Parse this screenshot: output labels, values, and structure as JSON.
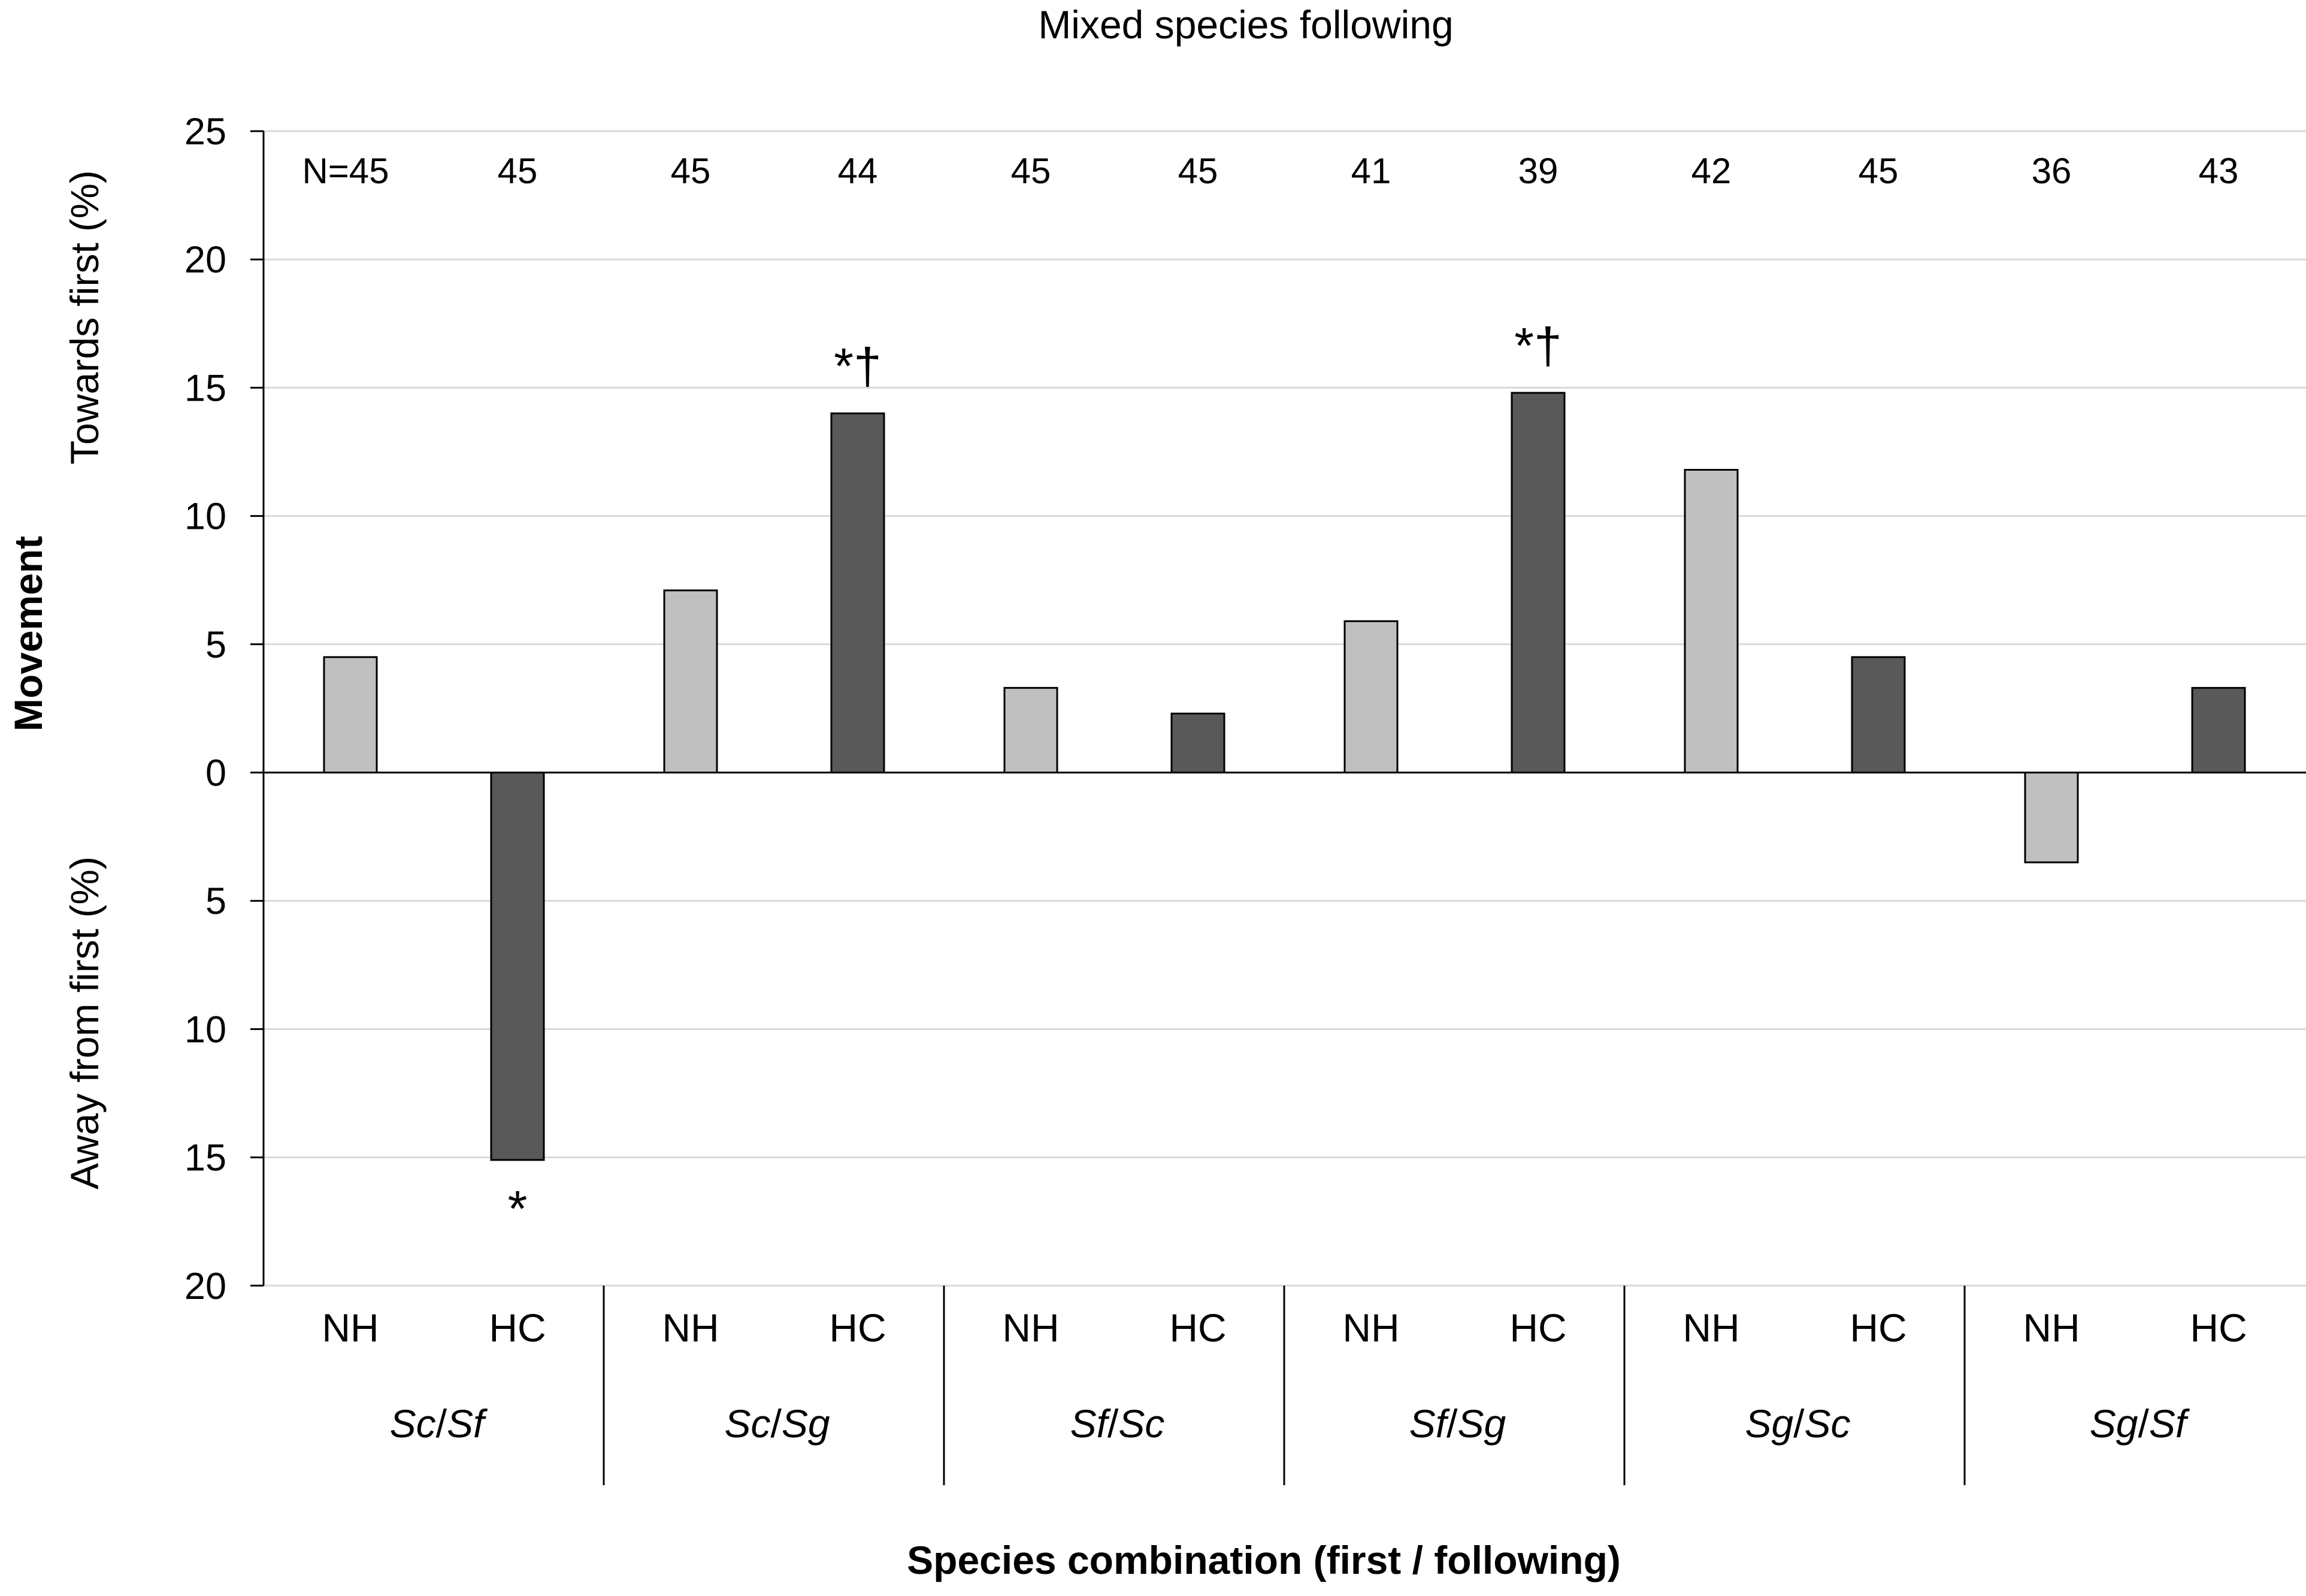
{
  "chart_data": {
    "type": "bar",
    "title": "Mixed species following",
    "xlabel": "Species combination  (first / following)",
    "ylabel": "Movement",
    "ylabel_towards": "Towards first (%)",
    "ylabel_away": "Away from first (%)",
    "ylim": [
      -20,
      25
    ],
    "yticks": [
      25,
      20,
      15,
      10,
      5,
      0,
      -5,
      -10,
      -15,
      -20
    ],
    "ytick_labels": [
      "25",
      "20",
      "15",
      "10",
      "5",
      "0",
      "5",
      "10",
      "15",
      "20"
    ],
    "grid": true,
    "colors": {
      "NH": "#c0c0c0",
      "HC": "#595959",
      "edge": "#000000",
      "grid": "#d9d9d9"
    },
    "groups": [
      {
        "label_first": "Sc",
        "label_sep": "/",
        "label_second": "Sf",
        "bars": [
          {
            "condition": "NH",
            "value": 4.5,
            "n_label": "N=45",
            "annotation": ""
          },
          {
            "condition": "HC",
            "value": -15.1,
            "n_label": "45",
            "annotation": "*"
          }
        ]
      },
      {
        "label_first": "Sc",
        "label_sep": "/",
        "label_second": "Sg",
        "bars": [
          {
            "condition": "NH",
            "value": 7.1,
            "n_label": "45",
            "annotation": ""
          },
          {
            "condition": "HC",
            "value": 14.0,
            "n_label": "44",
            "annotation": "*†"
          }
        ]
      },
      {
        "label_first": "Sf",
        "label_sep": "/",
        "label_second": "Sc",
        "bars": [
          {
            "condition": "NH",
            "value": 3.3,
            "n_label": "45",
            "annotation": ""
          },
          {
            "condition": "HC",
            "value": 2.3,
            "n_label": "45",
            "annotation": ""
          }
        ]
      },
      {
        "label_first": "Sf",
        "label_sep": "/",
        "label_second": "Sg",
        "bars": [
          {
            "condition": "NH",
            "value": 5.9,
            "n_label": "41",
            "annotation": ""
          },
          {
            "condition": "HC",
            "value": 14.8,
            "n_label": "39",
            "annotation": "*†"
          }
        ]
      },
      {
        "label_first": "Sg",
        "label_sep": "/",
        "label_second": "Sc",
        "bars": [
          {
            "condition": "NH",
            "value": 11.8,
            "n_label": "42",
            "annotation": ""
          },
          {
            "condition": "HC",
            "value": 4.5,
            "n_label": "45",
            "annotation": ""
          }
        ]
      },
      {
        "label_first": "Sg",
        "label_sep": "/",
        "label_second": "Sf",
        "bars": [
          {
            "condition": "NH",
            "value": -3.5,
            "n_label": "36",
            "annotation": ""
          },
          {
            "condition": "HC",
            "value": 3.3,
            "n_label": "43",
            "annotation": ""
          }
        ]
      }
    ]
  }
}
